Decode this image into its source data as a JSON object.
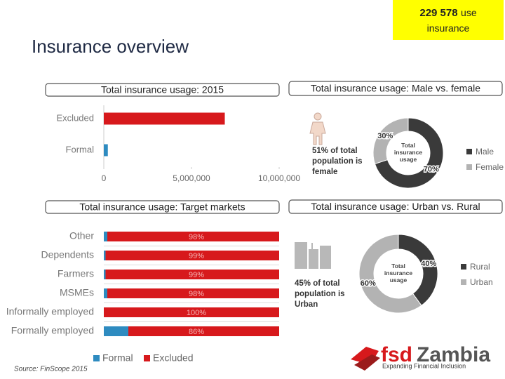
{
  "title": "Insurance overview",
  "highlight": {
    "value": "229 578",
    "text1": "use",
    "text2": "insurance"
  },
  "source": "Source: FinScope 2015",
  "logo": {
    "part1": "fsd",
    "part2": "Zambia",
    "tagline": "Expanding Financial Inclusion"
  },
  "chart_data": [
    {
      "type": "bar",
      "title": "Total insurance usage: 2015",
      "categories": [
        "Excluded",
        "Formal"
      ],
      "values": [
        6900000,
        230000
      ],
      "colors": [
        "#d7191c",
        "#2e8bc0"
      ],
      "xlim": [
        0,
        10000000
      ],
      "xticks": [
        0,
        {
          "value": 5000000,
          "label": "5,000,000"
        },
        {
          "value": 10000000,
          "label": "10,000,000"
        }
      ]
    },
    {
      "type": "donut",
      "title": "Total insurance usage: Male vs. female",
      "center_label": "Total insurance usage",
      "annotation": "51% of total population is female",
      "categories": [
        "Male",
        "Female"
      ],
      "values": [
        70,
        30
      ],
      "value_labels": [
        "70%",
        "30%"
      ],
      "colors": [
        "#3a3a3a",
        "#b3b3b3"
      ]
    },
    {
      "type": "bar",
      "stacked": true,
      "title": "Total insurance usage: Target markets",
      "categories": [
        "Other",
        "Dependents",
        "Farmers",
        "MSMEs",
        "Informally employed",
        "Formally employed"
      ],
      "xlim": [
        0,
        100
      ],
      "series": [
        {
          "name": "Formal",
          "color": "#2e8bc0",
          "values": [
            2,
            1,
            1,
            2,
            0,
            14
          ]
        },
        {
          "name": "Excluded",
          "color": "#d7191c",
          "values": [
            98,
            99,
            99,
            98,
            100,
            86
          ],
          "value_labels": [
            "98%",
            "99%",
            "99%",
            "98%",
            "100%",
            "86%"
          ]
        }
      ]
    },
    {
      "type": "donut",
      "title": "Total insurance usage: Urban vs. Rural",
      "center_label": "Total insurance usage",
      "annotation": "45% of total population is Urban",
      "categories": [
        "Rural",
        "Urban"
      ],
      "values": [
        40,
        60
      ],
      "value_labels": [
        "40%",
        "60%"
      ],
      "colors": [
        "#3a3a3a",
        "#b3b3b3"
      ]
    }
  ]
}
